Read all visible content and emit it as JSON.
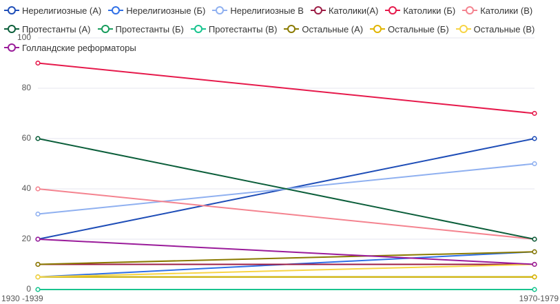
{
  "chart_data": {
    "type": "line",
    "categories": [
      "1930 -1939",
      "1970-1979"
    ],
    "series": [
      {
        "name": "Нерелигиозные (А)",
        "color": "#1e4db7",
        "values": [
          20,
          60
        ]
      },
      {
        "name": "Нерелигиозные (Б)",
        "color": "#2f6fe6",
        "values": [
          5,
          15
        ]
      },
      {
        "name": "Нерелигиозные В",
        "color": "#8fb0f0",
        "values": [
          30,
          50
        ]
      },
      {
        "name": "Католики(А)",
        "color": "#9c1c44",
        "values": [
          10,
          10
        ]
      },
      {
        "name": "Католики (Б)",
        "color": "#e6194b",
        "values": [
          90,
          70
        ]
      },
      {
        "name": "Католики (В)",
        "color": "#f4838f",
        "values": [
          40,
          20
        ]
      },
      {
        "name": "Протестанты (А)",
        "color": "#0b5e3a",
        "values": [
          60,
          20
        ]
      },
      {
        "name": "Протестанты (Б)",
        "color": "#179c5c",
        "values": [
          5,
          5
        ]
      },
      {
        "name": "Протестанты (В)",
        "color": "#18c48f",
        "values": [
          0,
          0
        ]
      },
      {
        "name": "Остальные (А)",
        "color": "#8a7a00",
        "values": [
          10,
          15
        ]
      },
      {
        "name": "Остальные (Б)",
        "color": "#e0b400",
        "values": [
          5,
          5
        ]
      },
      {
        "name": "Остальные (В)",
        "color": "#f7d445",
        "values": [
          5,
          10
        ]
      },
      {
        "name": "Голландские реформаторы",
        "color": "#9a1b9a",
        "values": [
          20,
          10
        ]
      }
    ],
    "ylim": [
      0,
      100
    ],
    "yticks": [
      0,
      20,
      40,
      60,
      80,
      100
    ],
    "grid": true,
    "legend": "top"
  }
}
